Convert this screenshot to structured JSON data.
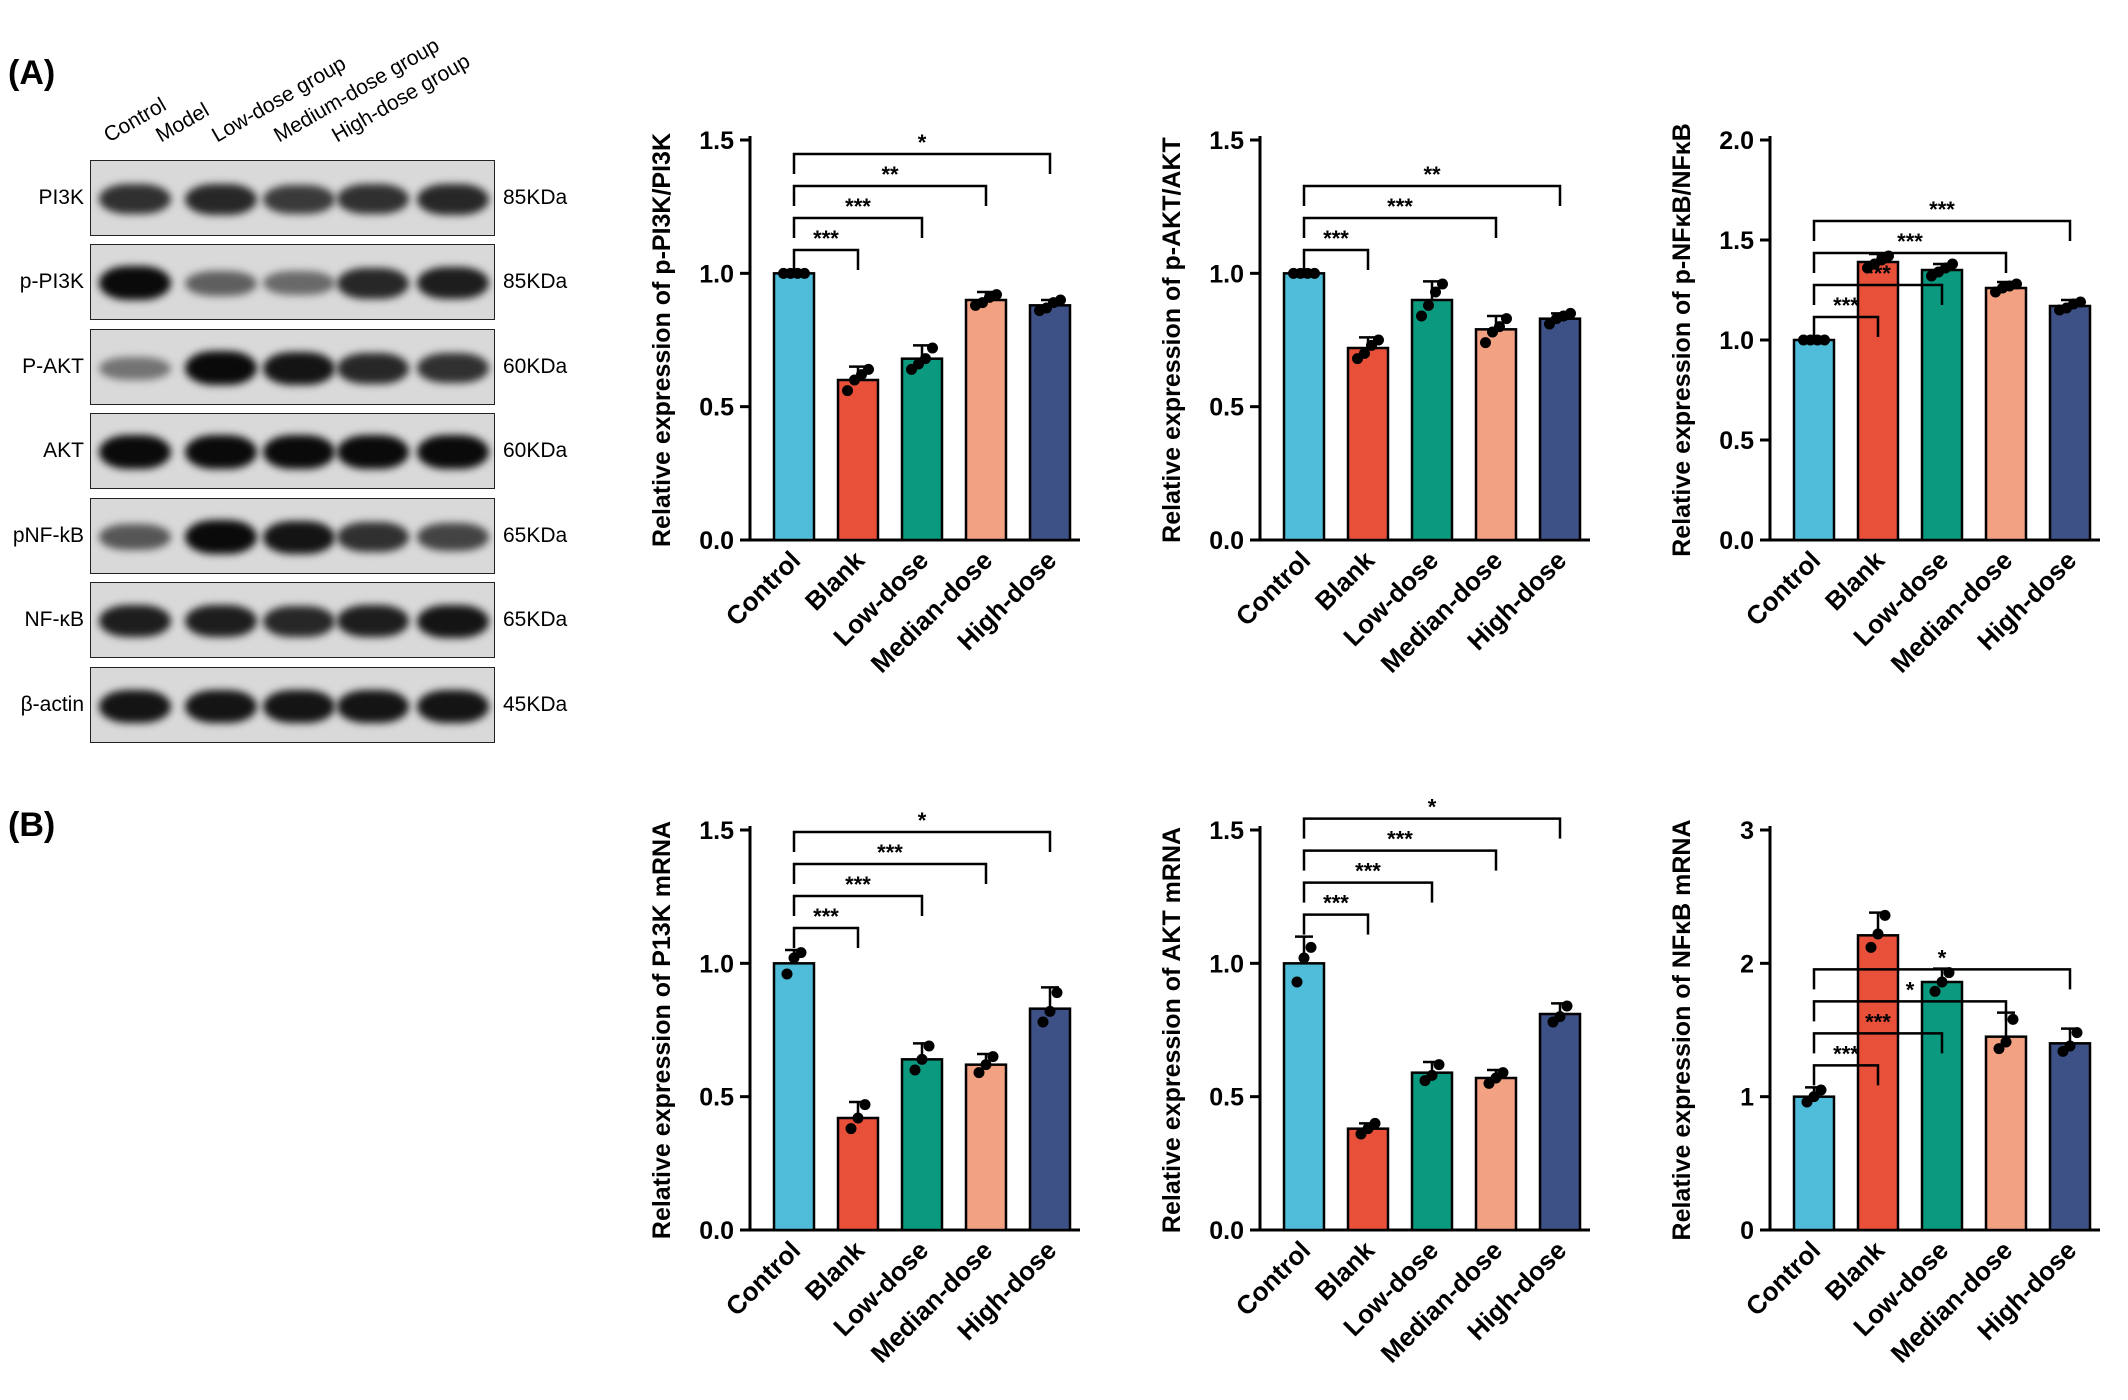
{
  "panels": {
    "a": "(A)",
    "b": "(B)"
  },
  "blot": {
    "lanes": [
      "Control",
      "Model",
      "Low-dose group",
      "Medium-dose group",
      "High-dose group"
    ],
    "rows": [
      {
        "protein": "PI3K",
        "kda": "85KDa",
        "intensity": [
          0.8,
          0.85,
          0.75,
          0.8,
          0.85
        ]
      },
      {
        "protein": "p-PI3K",
        "kda": "85KDa",
        "intensity": [
          1.0,
          0.55,
          0.5,
          0.85,
          0.9
        ]
      },
      {
        "protein": "P-AKT",
        "kda": "60KDa",
        "intensity": [
          0.45,
          1.0,
          0.95,
          0.85,
          0.8
        ]
      },
      {
        "protein": "AKT",
        "kda": "60KDa",
        "intensity": [
          1.0,
          1.0,
          1.0,
          1.0,
          1.0
        ]
      },
      {
        "protein": "pNF-kB",
        "kda": "65KDa",
        "intensity": [
          0.6,
          1.0,
          0.95,
          0.8,
          0.7
        ]
      },
      {
        "protein": "NF-κB",
        "kda": "65KDa",
        "intensity": [
          0.9,
          0.9,
          0.85,
          0.9,
          0.95
        ]
      },
      {
        "protein": "β-actin",
        "kda": "45KDa",
        "intensity": [
          0.95,
          0.95,
          0.95,
          0.95,
          0.95
        ]
      }
    ]
  },
  "colors": {
    "Control": "#4fbcd9",
    "Blank": "#e8503a",
    "Low-dose": "#0b9a80",
    "Median-dose": "#f2a182",
    "High-dose": "#3d5187"
  },
  "chart_data": [
    {
      "type": "bar",
      "ylabel": "Relative expression of p-PI3K/PI3K",
      "categories": [
        "Control",
        "Blank",
        "Low-dose",
        "Median-dose",
        "High-dose"
      ],
      "values": [
        1.0,
        0.6,
        0.68,
        0.9,
        0.88
      ],
      "errors": [
        0.005,
        0.05,
        0.05,
        0.03,
        0.02
      ],
      "points": [
        [
          1,
          1,
          1,
          1
        ],
        [
          0.56,
          0.6,
          0.62,
          0.64
        ],
        [
          0.64,
          0.66,
          0.68,
          0.72
        ],
        [
          0.88,
          0.89,
          0.91,
          0.92
        ],
        [
          0.86,
          0.87,
          0.89,
          0.9
        ]
      ],
      "ylim": [
        0,
        1.5
      ],
      "ticks": [
        0.0,
        0.5,
        1.0,
        1.5
      ],
      "ticklabels": [
        "0.0",
        "0.5",
        "1.0",
        "1.5"
      ],
      "sig": [
        {
          "to": 1,
          "label": "***"
        },
        {
          "to": 2,
          "label": "***"
        },
        {
          "to": 3,
          "label": "**"
        },
        {
          "to": 4,
          "label": "*"
        }
      ]
    },
    {
      "type": "bar",
      "ylabel": "Relative expression of p-AKT/AKT",
      "categories": [
        "Control",
        "Blank",
        "Low-dose",
        "Median-dose",
        "High-dose"
      ],
      "values": [
        1.0,
        0.72,
        0.9,
        0.79,
        0.83
      ],
      "errors": [
        0.005,
        0.04,
        0.07,
        0.05,
        0.02
      ],
      "points": [
        [
          1,
          1,
          1,
          1
        ],
        [
          0.68,
          0.7,
          0.73,
          0.75
        ],
        [
          0.84,
          0.88,
          0.93,
          0.96
        ],
        [
          0.74,
          0.78,
          0.8,
          0.83
        ],
        [
          0.81,
          0.83,
          0.84,
          0.85
        ]
      ],
      "ylim": [
        0,
        1.5
      ],
      "ticks": [
        0.0,
        0.5,
        1.0,
        1.5
      ],
      "ticklabels": [
        "0.0",
        "0.5",
        "1.0",
        "1.5"
      ],
      "sig": [
        {
          "to": 1,
          "label": "***"
        },
        {
          "to": 3,
          "label": "***"
        },
        {
          "to": 4,
          "label": "**"
        }
      ]
    },
    {
      "type": "bar",
      "ylabel": "Relative expression of p-NFκB/NFκB",
      "categories": [
        "Control",
        "Blank",
        "Low-dose",
        "Median-dose",
        "High-dose"
      ],
      "values": [
        1.0,
        1.39,
        1.35,
        1.26,
        1.17
      ],
      "errors": [
        0.005,
        0.04,
        0.03,
        0.03,
        0.03
      ],
      "points": [
        [
          1,
          1,
          1,
          1
        ],
        [
          1.36,
          1.38,
          1.4,
          1.42
        ],
        [
          1.32,
          1.34,
          1.36,
          1.38
        ],
        [
          1.24,
          1.26,
          1.27,
          1.28
        ],
        [
          1.15,
          1.16,
          1.18,
          1.19
        ]
      ],
      "ylim": [
        0,
        2.0
      ],
      "ticks": [
        0.0,
        0.5,
        1.0,
        1.5,
        2.0
      ],
      "ticklabels": [
        "0.0",
        "0.5",
        "1.0",
        "1.5",
        "2.0"
      ],
      "sig": [
        {
          "to": 1,
          "label": "***"
        },
        {
          "to": 2,
          "label": "***"
        },
        {
          "to": 3,
          "label": "***"
        },
        {
          "to": 4,
          "label": "***"
        }
      ]
    },
    {
      "type": "bar",
      "ylabel": "Relative expression of P13K mRNA",
      "categories": [
        "Control",
        "Blank",
        "Low-dose",
        "Median-dose",
        "High-dose"
      ],
      "values": [
        1.0,
        0.42,
        0.64,
        0.62,
        0.83
      ],
      "errors": [
        0.05,
        0.06,
        0.06,
        0.04,
        0.08
      ],
      "points": [
        [
          0.96,
          1.02,
          1.04
        ],
        [
          0.38,
          0.42,
          0.47
        ],
        [
          0.6,
          0.64,
          0.69
        ],
        [
          0.59,
          0.62,
          0.65
        ],
        [
          0.78,
          0.82,
          0.89
        ]
      ],
      "ylim": [
        0,
        1.5
      ],
      "ticks": [
        0.0,
        0.5,
        1.0,
        1.5
      ],
      "ticklabels": [
        "0.0",
        "0.5",
        "1.0",
        "1.5"
      ],
      "sig": [
        {
          "to": 1,
          "label": "***"
        },
        {
          "to": 2,
          "label": "***"
        },
        {
          "to": 3,
          "label": "***"
        },
        {
          "to": 4,
          "label": "*"
        }
      ]
    },
    {
      "type": "bar",
      "ylabel": "Relative expression of AKT mRNA",
      "categories": [
        "Control",
        "Blank",
        "Low-dose",
        "Median-dose",
        "High-dose"
      ],
      "values": [
        1.0,
        0.38,
        0.59,
        0.57,
        0.81
      ],
      "errors": [
        0.1,
        0.02,
        0.04,
        0.03,
        0.04
      ],
      "points": [
        [
          0.93,
          1.02,
          1.06
        ],
        [
          0.36,
          0.38,
          0.4
        ],
        [
          0.56,
          0.58,
          0.62
        ],
        [
          0.55,
          0.57,
          0.59
        ],
        [
          0.78,
          0.8,
          0.84
        ]
      ],
      "ylim": [
        0,
        1.5
      ],
      "ticks": [
        0.0,
        0.5,
        1.0,
        1.5
      ],
      "ticklabels": [
        "0.0",
        "0.5",
        "1.0",
        "1.5"
      ],
      "sig": [
        {
          "to": 1,
          "label": "***"
        },
        {
          "to": 2,
          "label": "***"
        },
        {
          "to": 3,
          "label": "***"
        },
        {
          "to": 4,
          "label": "*"
        }
      ]
    },
    {
      "type": "bar",
      "ylabel": "Relative expression of NFκB mRNA",
      "categories": [
        "Control",
        "Blank",
        "Low-dose",
        "Median-dose",
        "High-dose"
      ],
      "values": [
        1.0,
        2.21,
        1.86,
        1.45,
        1.4
      ],
      "errors": [
        0.07,
        0.17,
        0.1,
        0.18,
        0.11
      ],
      "points": [
        [
          0.96,
          1.0,
          1.05
        ],
        [
          2.12,
          2.22,
          2.36
        ],
        [
          1.79,
          1.86,
          1.93
        ],
        [
          1.36,
          1.41,
          1.58
        ],
        [
          1.34,
          1.38,
          1.48
        ]
      ],
      "ylim": [
        0,
        3
      ],
      "ticks": [
        0,
        1,
        2,
        3
      ],
      "ticklabels": [
        "0",
        "1",
        "2",
        "3"
      ],
      "sig": [
        {
          "to": 1,
          "label": "***"
        },
        {
          "to": 2,
          "label": "***"
        },
        {
          "to": 3,
          "label": "*"
        },
        {
          "to": 4,
          "label": "*"
        }
      ]
    }
  ]
}
